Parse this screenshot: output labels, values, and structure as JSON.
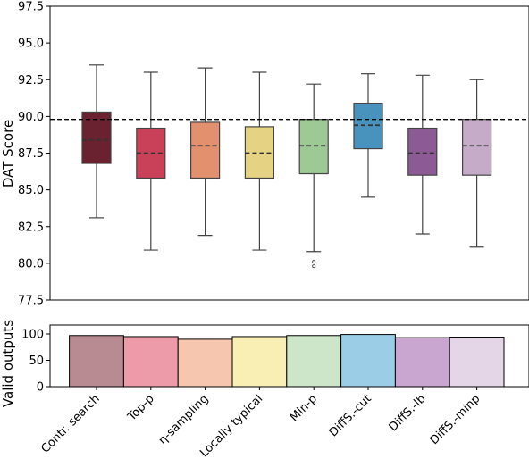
{
  "chart_data": [
    {
      "type": "box",
      "ylabel": "DAT Score",
      "ylim": [
        77.5,
        97.5
      ],
      "yticks": [
        "77.5",
        "80.0",
        "82.5",
        "85.0",
        "87.5",
        "90.0",
        "92.5",
        "95.0",
        "97.5"
      ],
      "reference_line": 89.8,
      "grid": false,
      "categories": [
        "Contr. search",
        "Top-p",
        "η-sampling",
        "Locally typical",
        "Min-p",
        "DiffS.-cut",
        "DiffS.-lb",
        "DiffS.-minp"
      ],
      "boxes": [
        {
          "whisker_low": 83.1,
          "q1": 86.8,
          "median": 88.4,
          "q3": 90.3,
          "whisker_high": 93.5,
          "outliers": [],
          "color": "#6b2230"
        },
        {
          "whisker_low": 80.9,
          "q1": 85.8,
          "median": 87.5,
          "q3": 89.2,
          "whisker_high": 93.0,
          "outliers": [],
          "color": "#c84158"
        },
        {
          "whisker_low": 81.9,
          "q1": 85.8,
          "median": 88.0,
          "q3": 89.6,
          "whisker_high": 93.3,
          "outliers": [],
          "color": "#e2906e"
        },
        {
          "whisker_low": 80.9,
          "q1": 85.8,
          "median": 87.5,
          "q3": 89.3,
          "whisker_high": 93.0,
          "outliers": [],
          "color": "#e5d283"
        },
        {
          "whisker_low": 80.8,
          "q1": 86.1,
          "median": 88.0,
          "q3": 89.8,
          "whisker_high": 92.2,
          "outliers": [
            80.1,
            79.8
          ],
          "color": "#9cc994"
        },
        {
          "whisker_low": 84.5,
          "q1": 87.8,
          "median": 89.4,
          "q3": 90.9,
          "whisker_high": 92.9,
          "outliers": [],
          "color": "#4893be"
        },
        {
          "whisker_low": 82.0,
          "q1": 86.0,
          "median": 87.5,
          "q3": 89.2,
          "whisker_high": 92.8,
          "outliers": [],
          "color": "#8c5a95"
        },
        {
          "whisker_low": 81.1,
          "q1": 86.0,
          "median": 88.0,
          "q3": 89.8,
          "whisker_high": 92.5,
          "outliers": [],
          "color": "#c6abc9"
        }
      ]
    },
    {
      "type": "bar",
      "ylabel": "Valid outputs",
      "ylim": [
        0,
        100
      ],
      "yticks": [
        "0",
        "50",
        "100"
      ],
      "categories": [
        "Contr. search",
        "Top-p",
        "η-sampling",
        "Locally typical",
        "Min-p",
        "DiffS.-cut",
        "DiffS.-lb",
        "DiffS.-minp"
      ],
      "values": [
        97,
        95,
        90,
        95,
        97,
        99,
        93,
        94
      ],
      "colors": [
        "#b88b93",
        "#ee9ba9",
        "#f6c6ae",
        "#f9eeb4",
        "#cde5c9",
        "#9ccde7",
        "#c8a6cf",
        "#e4d5e7"
      ]
    }
  ]
}
